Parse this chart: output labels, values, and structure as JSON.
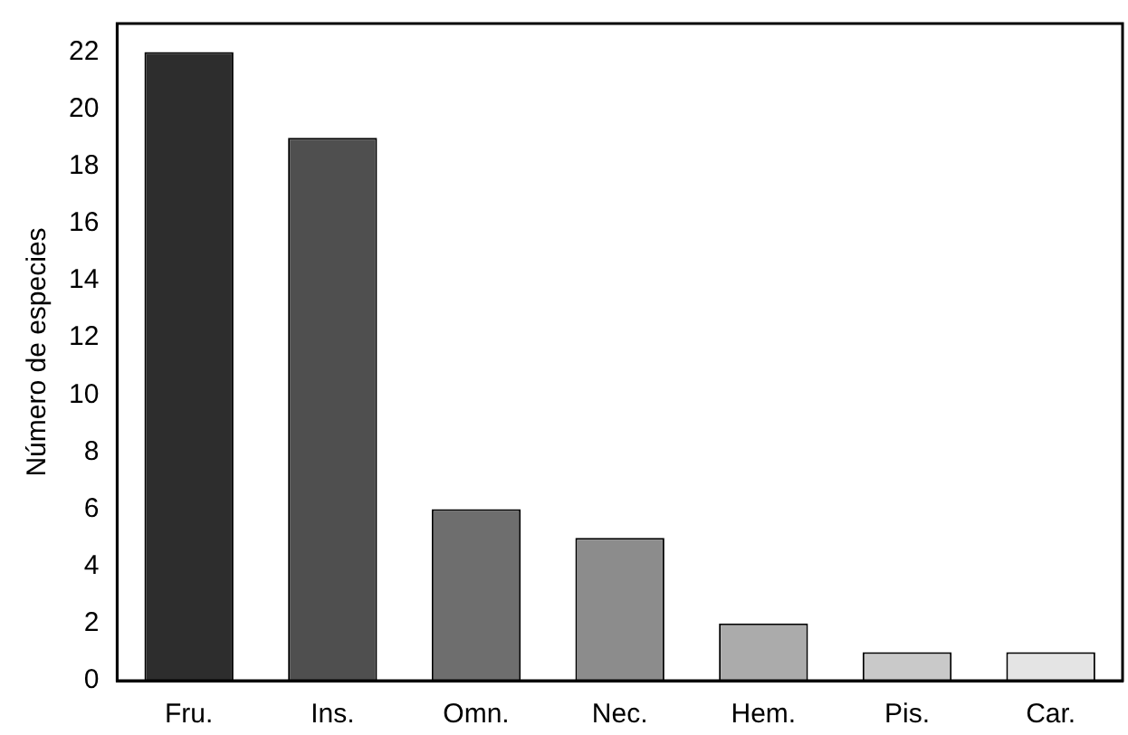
{
  "chart_data": {
    "type": "bar",
    "ylabel": "Número de especies",
    "categories": [
      "Fru.",
      "Ins.",
      "Omn.",
      "Nec.",
      "Hem.",
      "Pis.",
      "Car."
    ],
    "values": [
      22,
      19,
      6,
      5,
      2,
      1,
      1
    ],
    "colors": [
      "#2d2d2d",
      "#4f4f4f",
      "#6e6e6e",
      "#8c8c8c",
      "#ababab",
      "#c9c9c9",
      "#e4e4e4"
    ],
    "ylim": [
      0,
      23
    ],
    "yticks": [
      0,
      2,
      4,
      6,
      8,
      10,
      12,
      14,
      16,
      18,
      20,
      22
    ],
    "grid": false,
    "legend": false
  }
}
